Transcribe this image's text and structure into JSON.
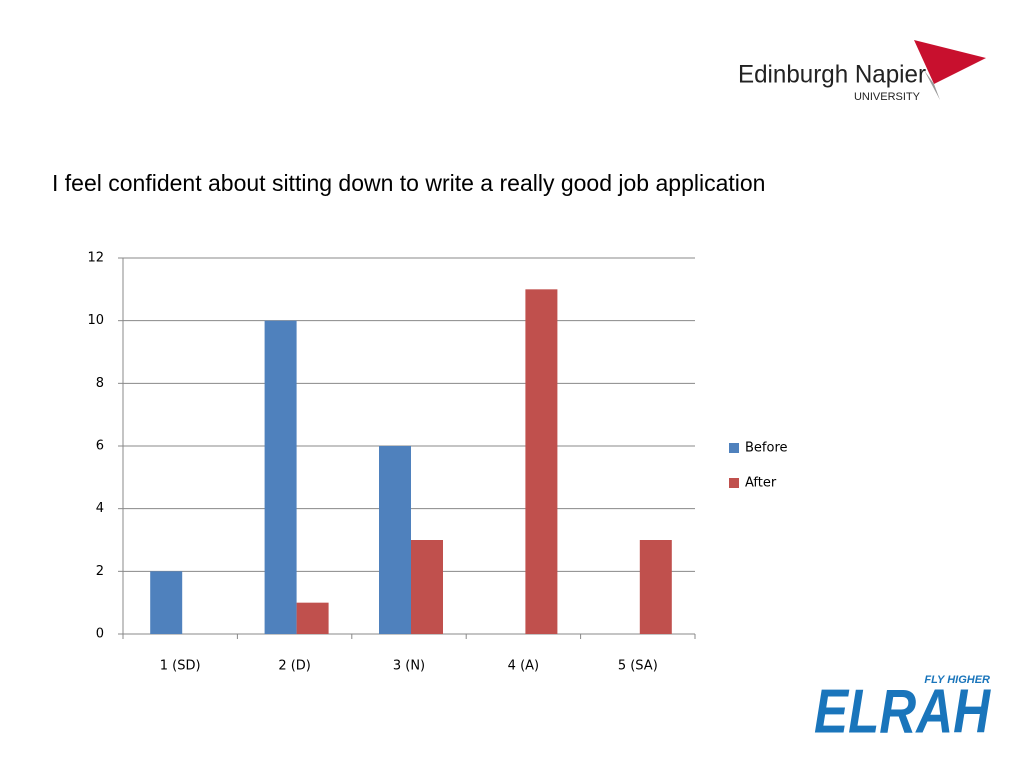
{
  "slide": {
    "logo_top": "Edinburgh Napier",
    "logo_top_sub": "UNIVERSITY",
    "logo_bottom_tag": "FLY HIGHER",
    "logo_bottom": "ELRAH"
  },
  "chart_data": {
    "type": "bar",
    "title": "I feel confident about sitting down to write a really good job application",
    "categories": [
      "1 (SD)",
      "2 (D)",
      "3 (N)",
      "4 (A)",
      "5 (SA)"
    ],
    "series": [
      {
        "name": "Before",
        "color": "#4f81bd",
        "values": [
          2,
          10,
          6,
          0,
          0
        ]
      },
      {
        "name": "After",
        "color": "#c0504d",
        "values": [
          0,
          1,
          3,
          11,
          3
        ]
      }
    ],
    "ylim": [
      0,
      12
    ],
    "yticks": [
      0,
      2,
      4,
      6,
      8,
      10,
      12
    ],
    "grid": true,
    "legend": "right"
  }
}
